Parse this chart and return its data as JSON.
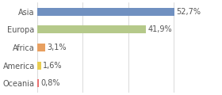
{
  "categories": [
    "Asia",
    "Europa",
    "Africa",
    "America",
    "Oceania"
  ],
  "values": [
    52.7,
    41.9,
    3.1,
    1.6,
    0.8
  ],
  "labels": [
    "52,7%",
    "41,9%",
    "3,1%",
    "1,6%",
    "0,8%"
  ],
  "bar_colors": [
    "#7090c0",
    "#b5c98a",
    "#e8a060",
    "#e8cc50",
    "#e87070"
  ],
  "background_color": "#ffffff",
  "xlim": [
    0,
    70
  ],
  "bar_height": 0.45,
  "label_fontsize": 7.0,
  "tick_fontsize": 7.0,
  "grid_color": "#cccccc",
  "text_color": "#555555"
}
